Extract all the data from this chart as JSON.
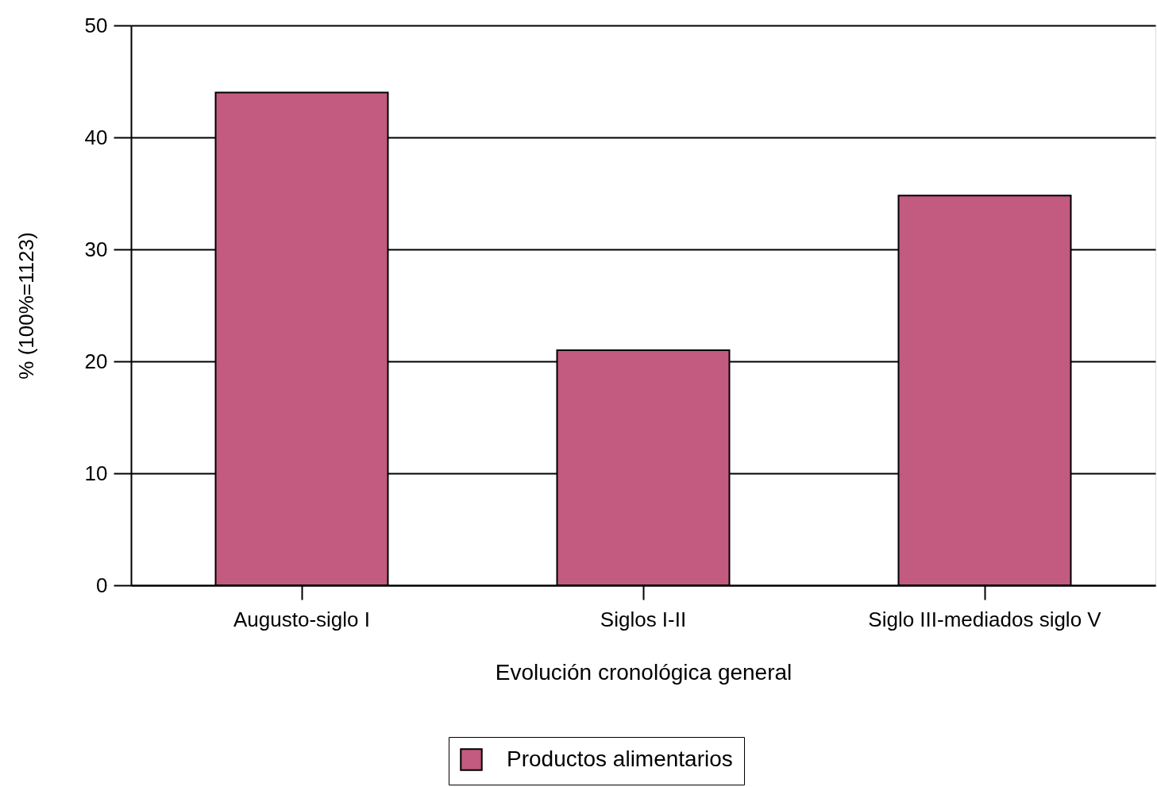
{
  "chart_data": {
    "type": "bar",
    "xlabel": "Evolución cronológica general",
    "ylabel": "% (100%=1123)",
    "categories": [
      "Augusto-siglo I",
      "Siglos I-II",
      "Siglo III-mediados siglo V"
    ],
    "series": [
      {
        "name": "Productos alimentarios",
        "color": "#c35a80",
        "values": [
          44,
          21,
          34.8
        ]
      }
    ],
    "ylim": [
      0,
      50
    ],
    "yticks": [
      0,
      10,
      20,
      30,
      40,
      50
    ],
    "grid": "y",
    "legend": "bottom"
  }
}
